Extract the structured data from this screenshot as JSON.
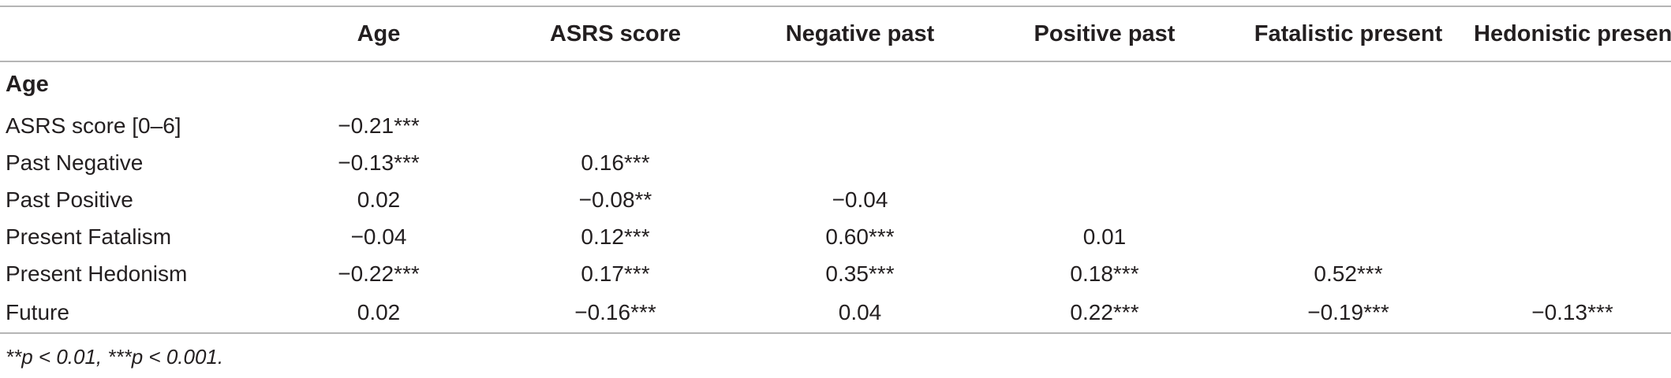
{
  "table": {
    "headers": [
      "",
      "Age",
      "ASRS score",
      "Negative past",
      "Positive past",
      "Fatalistic present",
      "Hedonistic present"
    ],
    "rows": [
      {
        "label": "Age",
        "cells": [
          "",
          "",
          "",
          "",
          "",
          ""
        ]
      },
      {
        "label": "ASRS score [0–6]",
        "cells": [
          "−0.21***",
          "",
          "",
          "",
          "",
          ""
        ]
      },
      {
        "label": "Past Negative",
        "cells": [
          "−0.13***",
          "0.16***",
          "",
          "",
          "",
          ""
        ]
      },
      {
        "label": "Past Positive",
        "cells": [
          "0.02",
          "−0.08**",
          "−0.04",
          "",
          "",
          ""
        ]
      },
      {
        "label": "Present Fatalism",
        "cells": [
          "−0.04",
          "0.12***",
          "0.60***",
          "0.01",
          "",
          ""
        ]
      },
      {
        "label": "Present Hedonism",
        "cells": [
          "−0.22***",
          "0.17***",
          "0.35***",
          "0.18***",
          "0.52***",
          ""
        ]
      },
      {
        "label": "Future",
        "cells": [
          "0.02",
          "−0.16***",
          "0.04",
          "0.22***",
          "−0.19***",
          "−0.13***"
        ]
      }
    ],
    "note": "**p < 0.01, ***p < 0.001."
  }
}
